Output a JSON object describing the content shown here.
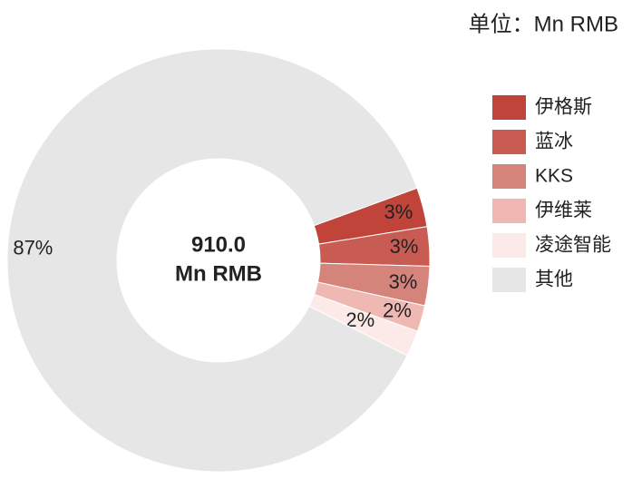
{
  "chart_data": {
    "type": "donut",
    "subtitle": "单位：Mn RMB",
    "center_value": "910.0",
    "center_unit": "Mn RMB",
    "categories": [
      "伊格斯",
      "蓝冰",
      "KKS",
      "伊维莱",
      "凌途智能",
      "其他"
    ],
    "values": [
      3,
      3,
      3,
      2,
      2,
      87
    ],
    "value_labels": [
      "3%",
      "3%",
      "3%",
      "2%",
      "2%",
      "87%"
    ],
    "colors": [
      "#c0443a",
      "#c95c52",
      "#d5847c",
      "#f0b8b2",
      "#fbeae8",
      "#e6e6e6"
    ],
    "legend": "right"
  }
}
